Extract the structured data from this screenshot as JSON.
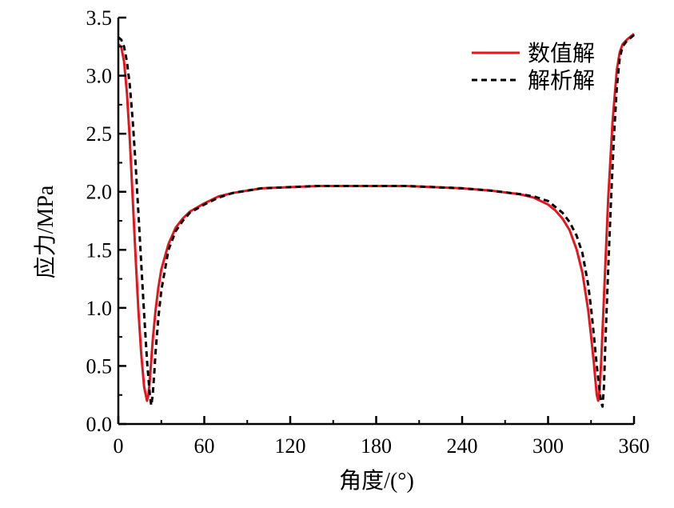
{
  "chart_data": {
    "type": "line",
    "title": "",
    "xlabel": "角度/(°)",
    "ylabel": "应力/MPa",
    "xlim": [
      0,
      360
    ],
    "ylim": [
      0,
      3.5
    ],
    "x_ticks": [
      0,
      60,
      120,
      180,
      240,
      300,
      360
    ],
    "x_tick_labels": [
      "0",
      "60",
      "120",
      "180",
      "240",
      "300",
      "360"
    ],
    "y_ticks": [
      0.0,
      0.5,
      1.0,
      1.5,
      2.0,
      2.5,
      3.0,
      3.5
    ],
    "y_tick_labels": [
      "0.0",
      "0.5",
      "1.0",
      "1.5",
      "2.0",
      "2.5",
      "3.0",
      "3.5"
    ],
    "grid": false,
    "legend_position": "top-right",
    "series": [
      {
        "name": "数值解",
        "color": "#e8141b",
        "style": "solid",
        "x": [
          0,
          2,
          4,
          6,
          8,
          10,
          12,
          14,
          16,
          18,
          20,
          21,
          22,
          23,
          24,
          26,
          28,
          30,
          35,
          40,
          45,
          50,
          60,
          70,
          80,
          90,
          100,
          120,
          140,
          160,
          180,
          200,
          220,
          240,
          260,
          280,
          290,
          300,
          305,
          310,
          315,
          320,
          324,
          328,
          330,
          332,
          333,
          334,
          335,
          336,
          337,
          338,
          340,
          342,
          345,
          348,
          350,
          352,
          355,
          358,
          360
        ],
        "y": [
          3.27,
          3.25,
          3.12,
          2.85,
          2.45,
          1.95,
          1.45,
          0.98,
          0.6,
          0.32,
          0.2,
          0.25,
          0.38,
          0.55,
          0.72,
          0.98,
          1.18,
          1.33,
          1.55,
          1.69,
          1.77,
          1.83,
          1.9,
          1.96,
          1.99,
          2.01,
          2.03,
          2.04,
          2.05,
          2.05,
          2.05,
          2.05,
          2.04,
          2.03,
          2.01,
          1.98,
          1.95,
          1.89,
          1.84,
          1.77,
          1.67,
          1.5,
          1.3,
          0.98,
          0.76,
          0.52,
          0.38,
          0.25,
          0.2,
          0.3,
          0.52,
          0.8,
          1.38,
          1.95,
          2.6,
          3.05,
          3.2,
          3.27,
          3.31,
          3.34,
          3.36
        ]
      },
      {
        "name": "解析解",
        "color": "#000000",
        "style": "dashed",
        "x": [
          0,
          2,
          4,
          6,
          8,
          10,
          12,
          14,
          16,
          18,
          20,
          22,
          23,
          24,
          25,
          26,
          28,
          30,
          35,
          40,
          45,
          50,
          60,
          70,
          80,
          90,
          100,
          120,
          140,
          160,
          180,
          200,
          220,
          240,
          260,
          280,
          290,
          300,
          305,
          310,
          315,
          320,
          324,
          328,
          330,
          332,
          334,
          336,
          337,
          338,
          339,
          340,
          342,
          344,
          346,
          348,
          350,
          352,
          355,
          358,
          360
        ],
        "y": [
          3.33,
          3.31,
          3.25,
          3.12,
          2.92,
          2.62,
          2.25,
          1.82,
          1.38,
          0.95,
          0.55,
          0.25,
          0.16,
          0.25,
          0.42,
          0.62,
          0.92,
          1.15,
          1.5,
          1.66,
          1.75,
          1.82,
          1.89,
          1.95,
          1.99,
          2.01,
          2.03,
          2.04,
          2.05,
          2.05,
          2.05,
          2.05,
          2.04,
          2.03,
          2.01,
          1.98,
          1.96,
          1.92,
          1.87,
          1.82,
          1.74,
          1.62,
          1.47,
          1.2,
          1.0,
          0.76,
          0.5,
          0.28,
          0.19,
          0.15,
          0.32,
          0.7,
          1.35,
          1.95,
          2.48,
          2.9,
          3.15,
          3.25,
          3.3,
          3.33,
          3.35
        ]
      }
    ]
  }
}
